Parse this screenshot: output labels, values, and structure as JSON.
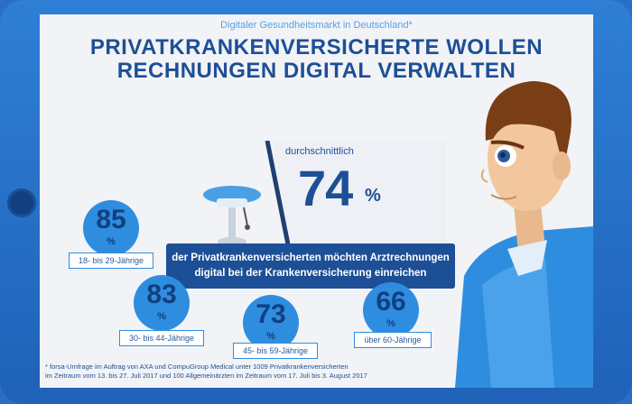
{
  "header": {
    "subtitle": "Digitaler Gesundheitsmarkt in Deutschland*",
    "title_line1": "PRIVATKRANKENVERSICHERTE WOLLEN",
    "title_line2": "RECHNUNGEN DIGITAL VERWALTEN"
  },
  "main": {
    "average_label": "durchschnittlich",
    "average_value": "74",
    "percent_sign": "%",
    "banner_line1": "der Privatkrankenversicherten möchten Arztrechnungen",
    "banner_line2": "digital bei der Krankenversicherung einreichen"
  },
  "age_groups": [
    {
      "value": "85",
      "unit": "%",
      "label": "18- bis 29-Jährige"
    },
    {
      "value": "83",
      "unit": "%",
      "label": "30- bis 44-Jährige"
    },
    {
      "value": "73",
      "unit": "%",
      "label": "45- bis 59-Jährige"
    },
    {
      "value": "66",
      "unit": "%",
      "label": "über 60-Jährige"
    }
  ],
  "footnote": {
    "line1": "* forsa-Umfrage im Auftrag von AXA und CompuGroup Medical unter 1009 Privatkrankenversicherten",
    "line2": "im Zeitraum vom 13. bis 27. Juli 2017 und 100 Allgemeinärzten im Zeitraum vom 17. Juli bis 3. August 2017"
  },
  "colors": {
    "frame": "#2f7fd6",
    "navy": "#1d4f96",
    "bubble": "#2f8de0",
    "screen_bg": "#f2f3f6"
  }
}
